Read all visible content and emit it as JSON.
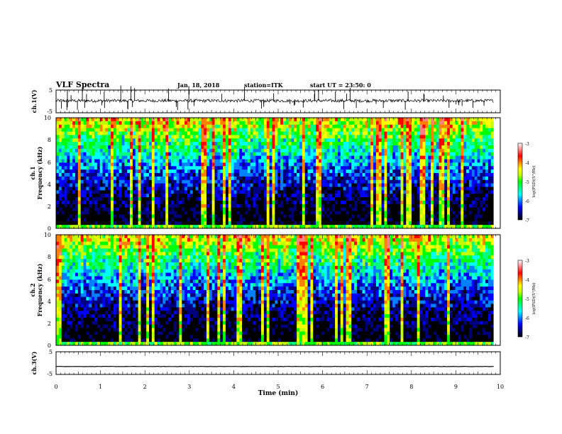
{
  "header": {
    "title": "VLF Spectra",
    "date": "Jan. 18, 2018",
    "station": "station=ITK",
    "start": "start  UT  =   23:50: 0"
  },
  "colorbar": {
    "label": "log(PSD)(V²/Hz)",
    "ticks": [
      "-3",
      "-4",
      "-5",
      "-6",
      "-7"
    ],
    "colors": [
      "#000000",
      "#00007f",
      "#0000ff",
      "#0080ff",
      "#00ffff",
      "#00ff80",
      "#00ff00",
      "#c0ff00",
      "#ffff00",
      "#ff8000",
      "#ff0000",
      "#ff8080",
      "#ffffff"
    ]
  },
  "chart_data": [
    {
      "type": "line",
      "title": "",
      "ylabel": "ch.1(V)",
      "yticks": [
        "5",
        "-5"
      ],
      "ylim": [
        -5,
        5
      ],
      "xlim": [
        0,
        10
      ],
      "description_level": "noisy waveform near +0.3 V with spikes",
      "mean_value": 0.3
    },
    {
      "type": "heatmap",
      "ylabel_channel": "ch.1",
      "ylabel": "Frequency (kHz)",
      "yticks": [
        "0",
        "2",
        "4",
        "6",
        "8",
        "10"
      ],
      "ylim": [
        0,
        10
      ],
      "xlim": [
        0,
        10
      ],
      "zlim": [
        -7,
        -3
      ]
    },
    {
      "type": "heatmap",
      "ylabel_channel": "ch.2",
      "ylabel": "Frequency (kHz)",
      "yticks": [
        "0",
        "2",
        "4",
        "6",
        "8",
        "10"
      ],
      "ylim": [
        0,
        10
      ],
      "xlim": [
        0,
        10
      ],
      "zlim": [
        -7,
        -3
      ]
    },
    {
      "type": "line",
      "ylabel": "ch.3(V)",
      "yticks": [
        "5",
        "-5"
      ],
      "ylim": [
        -5,
        5
      ],
      "xlim": [
        0,
        10
      ],
      "mean_value": -1.5,
      "xlabel": "Time (min)",
      "xticks": [
        "0",
        "1",
        "2",
        "3",
        "4",
        "5",
        "6",
        "7",
        "8",
        "9",
        "10"
      ]
    }
  ]
}
